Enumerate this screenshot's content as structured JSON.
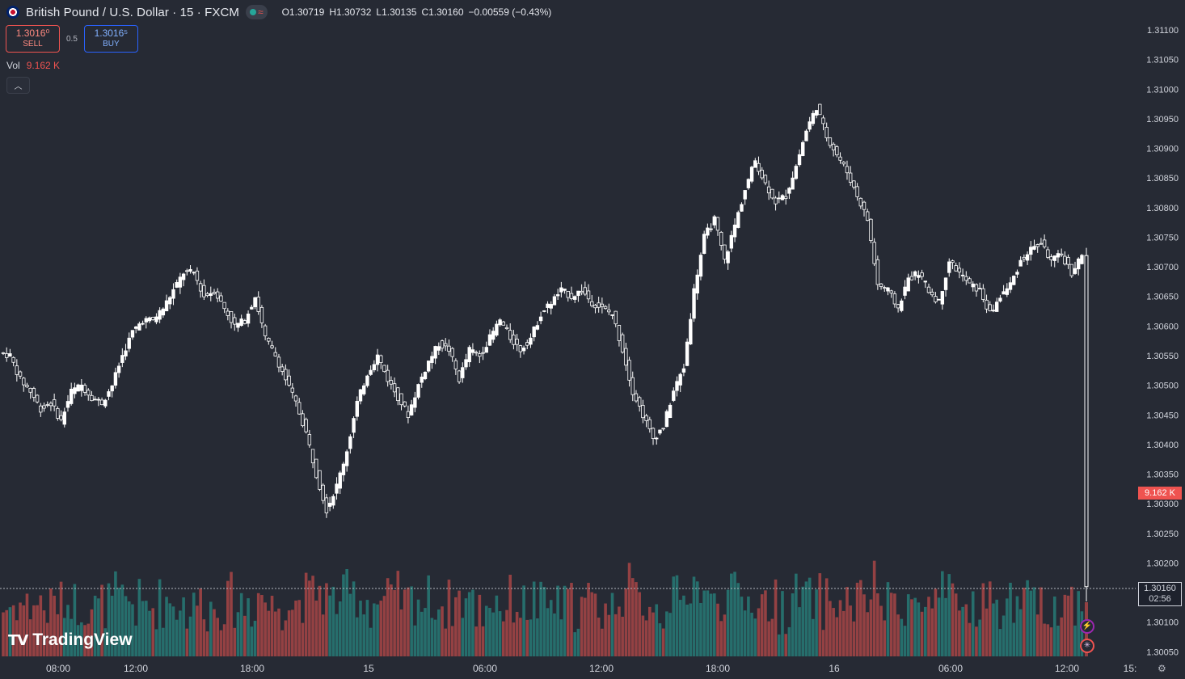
{
  "header": {
    "title": "British Pound / U.S. Dollar · 15 · FXCM",
    "open_label": "O",
    "open": "1.30719",
    "high_label": "H",
    "high": "1.30732",
    "low_label": "L",
    "low": "1.30135",
    "close_label": "C",
    "close": "1.30160",
    "change": "−0.00559 (−0.43%)"
  },
  "trade": {
    "sell_price": "1.3016⁰",
    "sell_label": "SELL",
    "spread": "0.5",
    "buy_price": "1.3016⁵",
    "buy_label": "BUY"
  },
  "volume": {
    "label": "Vol",
    "value": "9.162 K"
  },
  "price_scale": {
    "labels": [
      "1.31100",
      "1.31050",
      "1.31000",
      "1.30950",
      "1.30900",
      "1.30850",
      "1.30800",
      "1.30750",
      "1.30700",
      "1.30650",
      "1.30600",
      "1.30550",
      "1.30500",
      "1.30450",
      "1.30400",
      "1.30350",
      "1.30300",
      "1.30250",
      "1.30200",
      "1.30150",
      "1.30100",
      "1.30050"
    ],
    "current_price": "1.30160",
    "countdown": "02:56",
    "volume_badge": "9.162 K"
  },
  "time_scale": {
    "labels": [
      "08:00",
      "12:00",
      "18:00",
      "15",
      "06:00",
      "12:00",
      "18:00",
      "16",
      "06:00",
      "12:00",
      "15:"
    ]
  },
  "logo": "TradingView",
  "colors": {
    "background": "#262a34",
    "up": "#26a69a",
    "down": "#ef5350",
    "candle": "#ffffff",
    "text": "#d1d4dc"
  },
  "chart_data": {
    "type": "candlestick",
    "symbol": "British Pound / U.S. Dollar",
    "interval": "15",
    "ylim": [
      1.30045,
      1.31115
    ],
    "close_series": [
      1.3055,
      1.3051,
      1.3049,
      1.3046,
      1.3047,
      1.3044,
      1.3049,
      1.305,
      1.3048,
      1.3047,
      1.305,
      1.3055,
      1.3059,
      1.3061,
      1.3061,
      1.3063,
      1.3066,
      1.3069,
      1.3069,
      1.3065,
      1.3066,
      1.3063,
      1.306,
      1.3061,
      1.3065,
      1.3058,
      1.3055,
      1.3051,
      1.3047,
      1.3042,
      1.3035,
      1.3029,
      1.3033,
      1.3039,
      1.3047,
      1.3052,
      1.3055,
      1.3051,
      1.3048,
      1.3045,
      1.305,
      1.3054,
      1.3057,
      1.3056,
      1.3051,
      1.3056,
      1.3055,
      1.3058,
      1.3061,
      1.3058,
      1.3056,
      1.3058,
      1.3062,
      1.3064,
      1.3066,
      1.3065,
      1.3066,
      1.3064,
      1.3063,
      1.3062,
      1.3056,
      1.3049,
      1.3045,
      1.3041,
      1.3043,
      1.3049,
      1.3053,
      1.3066,
      1.3075,
      1.3078,
      1.3071,
      1.3077,
      1.3083,
      1.3088,
      1.3084,
      1.3081,
      1.3082,
      1.3087,
      1.3093,
      1.3097,
      1.3092,
      1.3089,
      1.3086,
      1.3082,
      1.3078,
      1.3067,
      1.3066,
      1.3063,
      1.3068,
      1.3069,
      1.3066,
      1.3064,
      1.3071,
      1.3069,
      1.3067,
      1.3066,
      1.3062,
      1.3065,
      1.3067,
      1.3071,
      1.3073,
      1.3074,
      1.3071,
      1.3072,
      1.3069,
      1.3072
    ]
  }
}
